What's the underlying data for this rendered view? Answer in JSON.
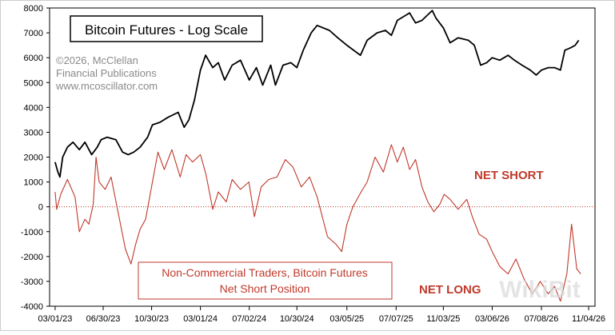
{
  "chart_data": {
    "type": "line",
    "title": "Bitcoin Futures - Log Scale",
    "credits": [
      "©2026, McClellan",
      "Financial Publications",
      "www.mcoscillator.com"
    ],
    "legend_box": [
      "Non-Commercial Traders, Bitcoin Futures",
      "Net Short Position"
    ],
    "annotations": {
      "upper": "NET SHORT",
      "lower": "NET LONG"
    },
    "watermark": "WikiBit",
    "ylim": [
      -4000,
      8000
    ],
    "y_ticks": [
      -4000,
      -3000,
      -2000,
      -1000,
      0,
      1000,
      2000,
      3000,
      4000,
      5000,
      6000,
      7000,
      8000
    ],
    "x_range": [
      "2023-02-15",
      "2026-11-20"
    ],
    "x_ticks": [
      {
        "date": "2023-03-01",
        "label": "03/01/23"
      },
      {
        "date": "2023-06-30",
        "label": "06/30/23"
      },
      {
        "date": "2023-10-30",
        "label": "10/30/23"
      },
      {
        "date": "2024-03-01",
        "label": "03/01/24"
      },
      {
        "date": "2024-07-02",
        "label": "07/02/24"
      },
      {
        "date": "2024-10-30",
        "label": "10/30/24"
      },
      {
        "date": "2025-03-05",
        "label": "03/05/25"
      },
      {
        "date": "2025-07-07",
        "label": "07/07/25"
      },
      {
        "date": "2025-11-03",
        "label": "11/03/25"
      },
      {
        "date": "2026-03-06",
        "label": "03/06/26"
      },
      {
        "date": "2026-07-08",
        "label": "07/08/26"
      },
      {
        "date": "2026-11-04",
        "label": "11/04/26"
      }
    ],
    "zero_line": 0,
    "grid": false,
    "colors": {
      "price": "#000000",
      "position": "#c0392b",
      "annotation": "#c0392b",
      "zero_line": "#c0392b"
    },
    "series": [
      {
        "name": "Bitcoin Futures",
        "color": "#000000",
        "points": [
          [
            "2023-03-01",
            1800
          ],
          [
            "2023-03-08",
            1400
          ],
          [
            "2023-03-13",
            1200
          ],
          [
            "2023-03-20",
            2000
          ],
          [
            "2023-04-01",
            2400
          ],
          [
            "2023-04-15",
            2600
          ],
          [
            "2023-05-01",
            2300
          ],
          [
            "2023-05-15",
            2600
          ],
          [
            "2023-06-01",
            2100
          ],
          [
            "2023-06-15",
            2400
          ],
          [
            "2023-06-25",
            2700
          ],
          [
            "2023-07-10",
            2800
          ],
          [
            "2023-08-01",
            2700
          ],
          [
            "2023-08-18",
            2200
          ],
          [
            "2023-09-01",
            2100
          ],
          [
            "2023-09-15",
            2200
          ],
          [
            "2023-10-01",
            2400
          ],
          [
            "2023-10-20",
            2800
          ],
          [
            "2023-11-01",
            3300
          ],
          [
            "2023-11-20",
            3400
          ],
          [
            "2023-12-10",
            3600
          ],
          [
            "2024-01-05",
            3800
          ],
          [
            "2024-01-20",
            3200
          ],
          [
            "2024-02-01",
            3500
          ],
          [
            "2024-02-15",
            4300
          ],
          [
            "2024-03-01",
            5500
          ],
          [
            "2024-03-14",
            6100
          ],
          [
            "2024-04-01",
            5600
          ],
          [
            "2024-04-15",
            5800
          ],
          [
            "2024-05-01",
            5100
          ],
          [
            "2024-05-20",
            5700
          ],
          [
            "2024-06-10",
            5900
          ],
          [
            "2024-07-02",
            5100
          ],
          [
            "2024-07-20",
            5600
          ],
          [
            "2024-08-05",
            4900
          ],
          [
            "2024-08-25",
            5700
          ],
          [
            "2024-09-06",
            4900
          ],
          [
            "2024-09-25",
            5700
          ],
          [
            "2024-10-15",
            5800
          ],
          [
            "2024-10-30",
            5600
          ],
          [
            "2024-11-15",
            6300
          ],
          [
            "2024-12-05",
            7000
          ],
          [
            "2024-12-20",
            7300
          ],
          [
            "2025-01-20",
            7100
          ],
          [
            "2025-02-10",
            6800
          ],
          [
            "2025-03-05",
            6500
          ],
          [
            "2025-04-08",
            6100
          ],
          [
            "2025-04-25",
            6700
          ],
          [
            "2025-05-20",
            7000
          ],
          [
            "2025-06-10",
            7100
          ],
          [
            "2025-06-25",
            6900
          ],
          [
            "2025-07-10",
            7500
          ],
          [
            "2025-08-10",
            7800
          ],
          [
            "2025-08-25",
            7400
          ],
          [
            "2025-09-10",
            7500
          ],
          [
            "2025-10-06",
            7900
          ],
          [
            "2025-10-15",
            7600
          ],
          [
            "2025-11-03",
            7200
          ],
          [
            "2025-11-20",
            6600
          ],
          [
            "2025-12-10",
            6800
          ],
          [
            "2026-01-05",
            6700
          ],
          [
            "2026-01-20",
            6500
          ],
          [
            "2026-02-05",
            5700
          ],
          [
            "2026-02-20",
            5800
          ],
          [
            "2026-03-06",
            6000
          ],
          [
            "2026-03-25",
            5900
          ],
          [
            "2026-04-15",
            6100
          ],
          [
            "2026-05-01",
            5900
          ],
          [
            "2026-05-20",
            5700
          ],
          [
            "2026-06-10",
            5500
          ],
          [
            "2026-06-25",
            5300
          ],
          [
            "2026-07-08",
            5500
          ],
          [
            "2026-07-25",
            5600
          ],
          [
            "2026-08-10",
            5600
          ],
          [
            "2026-08-25",
            5500
          ],
          [
            "2026-09-05",
            6300
          ],
          [
            "2026-09-20",
            6400
          ],
          [
            "2026-10-01",
            6500
          ],
          [
            "2026-10-10",
            6700
          ]
        ]
      },
      {
        "name": "Net Short Position",
        "color": "#c0392b",
        "points": [
          [
            "2023-03-01",
            600
          ],
          [
            "2023-03-05",
            -100
          ],
          [
            "2023-03-15",
            500
          ],
          [
            "2023-04-01",
            1100
          ],
          [
            "2023-04-20",
            400
          ],
          [
            "2023-05-01",
            -1000
          ],
          [
            "2023-05-15",
            -500
          ],
          [
            "2023-05-25",
            -700
          ],
          [
            "2023-06-05",
            100
          ],
          [
            "2023-06-12",
            2000
          ],
          [
            "2023-06-20",
            1000
          ],
          [
            "2023-07-05",
            700
          ],
          [
            "2023-07-20",
            1200
          ],
          [
            "2023-08-10",
            -500
          ],
          [
            "2023-08-25",
            -1700
          ],
          [
            "2023-09-08",
            -2300
          ],
          [
            "2023-09-20",
            -1500
          ],
          [
            "2023-10-01",
            -900
          ],
          [
            "2023-10-15",
            -500
          ],
          [
            "2023-11-01",
            1000
          ],
          [
            "2023-11-15",
            2200
          ],
          [
            "2023-12-01",
            1500
          ],
          [
            "2023-12-20",
            2300
          ],
          [
            "2024-01-10",
            1200
          ],
          [
            "2024-01-25",
            2100
          ],
          [
            "2024-02-10",
            1800
          ],
          [
            "2024-03-01",
            2100
          ],
          [
            "2024-03-15",
            1300
          ],
          [
            "2024-04-01",
            -100
          ],
          [
            "2024-04-15",
            600
          ],
          [
            "2024-05-05",
            200
          ],
          [
            "2024-05-20",
            1100
          ],
          [
            "2024-06-10",
            700
          ],
          [
            "2024-07-01",
            1000
          ],
          [
            "2024-07-15",
            -400
          ],
          [
            "2024-08-01",
            800
          ],
          [
            "2024-08-20",
            1100
          ],
          [
            "2024-09-10",
            1200
          ],
          [
            "2024-10-01",
            1900
          ],
          [
            "2024-10-20",
            1600
          ],
          [
            "2024-11-10",
            800
          ],
          [
            "2024-12-01",
            1200
          ],
          [
            "2024-12-20",
            400
          ],
          [
            "2025-01-15",
            -1200
          ],
          [
            "2025-02-05",
            -1500
          ],
          [
            "2025-02-20",
            -1800
          ],
          [
            "2025-03-05",
            -700
          ],
          [
            "2025-03-20",
            0
          ],
          [
            "2025-04-10",
            600
          ],
          [
            "2025-04-25",
            1000
          ],
          [
            "2025-05-15",
            2000
          ],
          [
            "2025-06-05",
            1400
          ],
          [
            "2025-06-25",
            2500
          ],
          [
            "2025-07-10",
            1800
          ],
          [
            "2025-07-25",
            2400
          ],
          [
            "2025-08-10",
            1500
          ],
          [
            "2025-08-25",
            1900
          ],
          [
            "2025-09-10",
            800
          ],
          [
            "2025-09-25",
            200
          ],
          [
            "2025-10-10",
            -200
          ],
          [
            "2025-10-25",
            100
          ],
          [
            "2025-11-05",
            500
          ],
          [
            "2025-11-20",
            300
          ],
          [
            "2025-12-10",
            -100
          ],
          [
            "2026-01-01",
            300
          ],
          [
            "2026-01-15",
            -400
          ],
          [
            "2026-02-01",
            -1100
          ],
          [
            "2026-02-20",
            -1300
          ],
          [
            "2026-03-06",
            -1800
          ],
          [
            "2026-03-25",
            -2400
          ],
          [
            "2026-04-15",
            -2700
          ],
          [
            "2026-05-05",
            -2100
          ],
          [
            "2026-05-25",
            -2900
          ],
          [
            "2026-06-15",
            -3500
          ],
          [
            "2026-07-05",
            -3000
          ],
          [
            "2026-07-25",
            -3500
          ],
          [
            "2026-08-10",
            -3200
          ],
          [
            "2026-08-25",
            -3800
          ],
          [
            "2026-09-10",
            -2700
          ],
          [
            "2026-09-22",
            -700
          ],
          [
            "2026-10-05",
            -2500
          ],
          [
            "2026-10-15",
            -2700
          ]
        ]
      }
    ]
  }
}
